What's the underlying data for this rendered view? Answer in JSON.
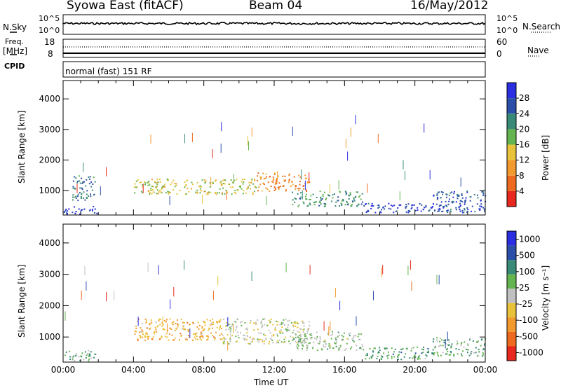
{
  "header": {
    "station": "Syowa East (fitACF)",
    "beam": "Beam 04",
    "date": "16/May/2012"
  },
  "top_panels": {
    "nsky_label": "N.Sky",
    "nsky_ticks": [
      "10^5",
      "10^0"
    ],
    "nsearch_label": "N.Search",
    "nsearch_ticks": [
      "10^5",
      "10^0"
    ],
    "freq_label": "Freq.",
    "freq_unit": "[MHz]",
    "freq_ticks": [
      "18",
      "8"
    ],
    "nave_label": "Nave",
    "nave_ticks": [
      "60",
      "0"
    ],
    "cpid_label": "CPID",
    "cpid_text": "normal (fast) 151 RF"
  },
  "colors": {
    "power": [
      "#2a2ee0",
      "#2b4fa8",
      "#3a8a78",
      "#64b450",
      "#e8c23a",
      "#f29a2e",
      "#ee6a20",
      "#e8281e"
    ],
    "velocity": [
      "#2a2ee0",
      "#2b4fa8",
      "#3a8a78",
      "#64b450",
      "#c0c0c0",
      "#e8c23a",
      "#f29a2e",
      "#ee6a20",
      "#e8281e"
    ]
  },
  "chart_data": [
    {
      "type": "heatmap",
      "title": "Power",
      "ylabel": "Slant Range [km]",
      "xlabel": "Time UT",
      "ylim": [
        200,
        4600
      ],
      "y_ticks": [
        "1000",
        "2000",
        "3000",
        "4000"
      ],
      "x_ticks": [
        "00:00",
        "04:00",
        "08:00",
        "12:00",
        "16:00",
        "20:00",
        "00:00"
      ],
      "colorbar_label": "Power [dB]",
      "colorbar_ticks": [
        "28",
        "24",
        "20",
        "16",
        "12",
        "8",
        "4"
      ],
      "colorbar_range": [
        0,
        30
      ],
      "bands": [
        {
          "x_hours": [
            0,
            2
          ],
          "y_km": [
            250,
            500
          ],
          "value": 28
        },
        {
          "x_hours": [
            0.5,
            1.8
          ],
          "y_km": [
            700,
            1500
          ],
          "value": 22
        },
        {
          "x_hours": [
            4,
            11
          ],
          "y_km": [
            900,
            1400
          ],
          "value": 14
        },
        {
          "x_hours": [
            11,
            14
          ],
          "y_km": [
            1000,
            1600
          ],
          "value": 8
        },
        {
          "x_hours": [
            13,
            17
          ],
          "y_km": [
            500,
            1000
          ],
          "value": 20
        },
        {
          "x_hours": [
            17,
            22
          ],
          "y_km": [
            300,
            600
          ],
          "value": 26
        },
        {
          "x_hours": [
            21,
            24
          ],
          "y_km": [
            300,
            1000
          ],
          "value": 24
        }
      ]
    },
    {
      "type": "heatmap",
      "title": "Velocity",
      "ylabel": "Slant Range [km]",
      "xlabel": "Time UT",
      "ylim": [
        200,
        4600
      ],
      "y_ticks": [
        "1000",
        "2000",
        "3000",
        "4000"
      ],
      "x_ticks": [
        "00:00",
        "04:00",
        "08:00",
        "12:00",
        "16:00",
        "20:00",
        "00:00"
      ],
      "colorbar_label": "Velocity [m s⁻¹]",
      "colorbar_ticks": [
        "1000",
        "500",
        "100",
        "25",
        "-25",
        "-100",
        "-500",
        "-1000"
      ],
      "colorbar_range": [
        -1200,
        1200
      ],
      "bands": [
        {
          "x_hours": [
            0,
            2
          ],
          "y_km": [
            250,
            600
          ],
          "value": 300
        },
        {
          "x_hours": [
            4,
            9
          ],
          "y_km": [
            900,
            1600
          ],
          "value": -400
        },
        {
          "x_hours": [
            9,
            14
          ],
          "y_km": [
            800,
            1600
          ],
          "value": 0
        },
        {
          "x_hours": [
            13,
            17
          ],
          "y_km": [
            600,
            1200
          ],
          "value": 150
        },
        {
          "x_hours": [
            17,
            21
          ],
          "y_km": [
            300,
            700
          ],
          "value": 400
        },
        {
          "x_hours": [
            21,
            24
          ],
          "y_km": [
            400,
            1000
          ],
          "value": 300
        }
      ]
    }
  ]
}
